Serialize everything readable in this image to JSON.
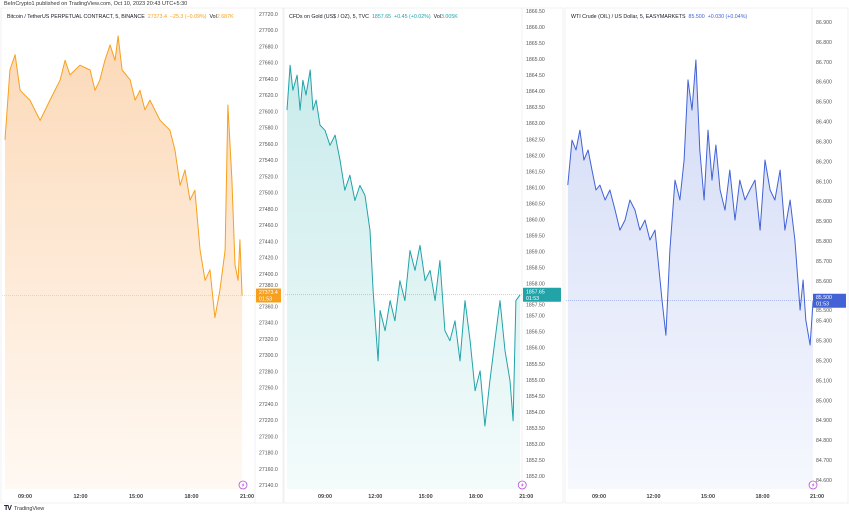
{
  "published": "BeInCrypto1 published on TradingView.com, Oct 10, 2023 20:43 UTC+5:30",
  "footer": {
    "logo": "TV",
    "brand": "TradingView"
  },
  "chart_data": [
    {
      "type": "area",
      "title": "Bitcoin / TetherUS PERPETUAL CONTRACT, 5, BINANCE",
      "last": "27373.4",
      "change": "−25.3 (−0.09%)",
      "vol_label": "Vol",
      "vol": "2.687K",
      "last_label_price": "27373.4",
      "last_label_time": "01:53",
      "color": "#f7a01d",
      "fill_top": "#fcd9b8",
      "fill_bottom": "#fff9f3",
      "ylim": [
        27140,
        27720
      ],
      "decimals": 1,
      "y_ticks": [
        27140,
        27160,
        27180,
        27200,
        27220,
        27240,
        27260,
        27280,
        27300,
        27320,
        27340,
        27360,
        27380,
        27400,
        27420,
        27440,
        27460,
        27480,
        27500,
        27520,
        27540,
        27560,
        27580,
        27600,
        27620,
        27640,
        27660,
        27680,
        27700,
        27720
      ],
      "x_ticks": [
        "09:00",
        "12:00",
        "15:00",
        "18:00",
        "21:00"
      ],
      "points": [
        [
          "07:55",
          27565
        ],
        [
          "08:11",
          27651
        ],
        [
          "08:28",
          27670
        ],
        [
          "08:44",
          27626
        ],
        [
          "09:16",
          27614
        ],
        [
          "09:49",
          27589
        ],
        [
          "10:21",
          27614
        ],
        [
          "10:54",
          27639
        ],
        [
          "11:10",
          27663
        ],
        [
          "11:26",
          27645
        ],
        [
          "11:58",
          27657
        ],
        [
          "12:31",
          27651
        ],
        [
          "12:47",
          27626
        ],
        [
          "13:03",
          27639
        ],
        [
          "13:19",
          27663
        ],
        [
          "13:36",
          27682
        ],
        [
          "13:52",
          27663
        ],
        [
          "14:02",
          27693
        ],
        [
          "14:15",
          27651
        ],
        [
          "14:41",
          27639
        ],
        [
          "14:57",
          27614
        ],
        [
          "15:13",
          27626
        ],
        [
          "15:29",
          27602
        ],
        [
          "15:45",
          27614
        ],
        [
          "16:18",
          27589
        ],
        [
          "16:50",
          27577
        ],
        [
          "17:06",
          27553
        ],
        [
          "17:23",
          27509
        ],
        [
          "17:39",
          27528
        ],
        [
          "17:55",
          27491
        ],
        [
          "18:11",
          27503
        ],
        [
          "18:28",
          27429
        ],
        [
          "18:44",
          27392
        ],
        [
          "19:00",
          27405
        ],
        [
          "19:16",
          27346
        ],
        [
          "19:32",
          27380
        ],
        [
          "19:49",
          27429
        ],
        [
          "19:58",
          27608
        ],
        [
          "20:11",
          27516
        ],
        [
          "20:21",
          27411
        ],
        [
          "20:31",
          27392
        ],
        [
          "20:37",
          27442
        ],
        [
          "20:44",
          27373.4
        ]
      ]
    },
    {
      "type": "area",
      "title": "CFDs on Gold (US$ / OZ), 5, TVC",
      "last": "1857.65",
      "change": "+0.45 (+0.02%)",
      "vol_label": "Vol",
      "vol": "3.005K",
      "last_label_price": "1857.65",
      "last_label_time": "01:53",
      "color": "#22a3a8",
      "fill_top": "#c9ebeb",
      "fill_bottom": "#f4fbfb",
      "ylim": [
        1852,
        1866.5
      ],
      "decimals": 2,
      "y_ticks": [
        1852,
        1852.5,
        1853,
        1853.5,
        1854,
        1854.5,
        1855,
        1855.5,
        1856,
        1856.5,
        1857,
        1857.5,
        1858,
        1858.5,
        1859,
        1859.5,
        1860,
        1860.5,
        1861,
        1861.5,
        1862,
        1862.5,
        1863,
        1863.5,
        1864,
        1864.5,
        1865,
        1865.5,
        1866,
        1866.5
      ],
      "x_ticks": [
        "09:00",
        "12:00",
        "15:00",
        "18:00",
        "21:00"
      ],
      "points": [
        [
          "06:44",
          1863.41
        ],
        [
          "06:55",
          1864.81
        ],
        [
          "07:05",
          1864.03
        ],
        [
          "07:20",
          1864.5
        ],
        [
          "07:31",
          1863.41
        ],
        [
          "07:41",
          1864.34
        ],
        [
          "07:52",
          1863.88
        ],
        [
          "08:07",
          1864.66
        ],
        [
          "08:17",
          1863.41
        ],
        [
          "08:28",
          1863.72
        ],
        [
          "08:42",
          1862.94
        ],
        [
          "09:00",
          1862.78
        ],
        [
          "09:18",
          1862.31
        ],
        [
          "09:36",
          1862.63
        ],
        [
          "09:54",
          1861.84
        ],
        [
          "10:11",
          1860.91
        ],
        [
          "10:29",
          1861.38
        ],
        [
          "10:47",
          1860.59
        ],
        [
          "11:05",
          1861.06
        ],
        [
          "11:23",
          1860.75
        ],
        [
          "11:41",
          1859.66
        ],
        [
          "11:52",
          1857.78
        ],
        [
          "12:02",
          1856.53
        ],
        [
          "12:10",
          1855.59
        ],
        [
          "12:17",
          1857.16
        ],
        [
          "12:35",
          1856.53
        ],
        [
          "12:53",
          1857.47
        ],
        [
          "13:10",
          1856.84
        ],
        [
          "13:28",
          1858.09
        ],
        [
          "13:46",
          1857.47
        ],
        [
          "14:04",
          1859.03
        ],
        [
          "14:22",
          1858.41
        ],
        [
          "14:40",
          1859.19
        ],
        [
          "14:58",
          1858.09
        ],
        [
          "15:16",
          1858.41
        ],
        [
          "15:34",
          1857.47
        ],
        [
          "15:51",
          1858.72
        ],
        [
          "16:09",
          1856.53
        ],
        [
          "16:27",
          1856.22
        ],
        [
          "16:45",
          1856.84
        ],
        [
          "17:03",
          1855.59
        ],
        [
          "17:21",
          1857.47
        ],
        [
          "17:39",
          1856.22
        ],
        [
          "17:57",
          1854.66
        ],
        [
          "18:15",
          1855.28
        ],
        [
          "18:32",
          1853.56
        ],
        [
          "18:50",
          1854.97
        ],
        [
          "19:08",
          1856.22
        ],
        [
          "19:26",
          1857.47
        ],
        [
          "19:44",
          1855.91
        ],
        [
          "20:02",
          1854.97
        ],
        [
          "20:13",
          1853.72
        ],
        [
          "20:23",
          1857.47
        ],
        [
          "20:38",
          1857.65
        ]
      ]
    },
    {
      "type": "area",
      "title": "WTI Crude (OIL) / US Dollar, 5, EASYMARKETS",
      "last": "85.500",
      "change": "+0.030 (+0.04%)",
      "vol_label": "",
      "vol": "",
      "last_label_price": "85.500",
      "last_label_time": "01:53",
      "color": "#4262d6",
      "fill_top": "#d3dbf6",
      "fill_bottom": "#f6f8fe",
      "ylim": [
        84.6,
        86.9
      ],
      "decimals": 3,
      "y_ticks": [
        84.6,
        84.7,
        84.8,
        84.9,
        85.0,
        85.1,
        85.2,
        85.3,
        85.4,
        85.5,
        85.6,
        85.7,
        85.8,
        85.9,
        86.0,
        86.1,
        86.2,
        86.3,
        86.4,
        86.5,
        86.6,
        86.7,
        86.8,
        86.9
      ],
      "x_ticks": [
        "09:00",
        "12:00",
        "15:00",
        "18:00",
        "21:00"
      ],
      "points": [
        [
          "07:17",
          86.081
        ],
        [
          "07:31",
          86.307
        ],
        [
          "07:44",
          86.257
        ],
        [
          "07:57",
          86.357
        ],
        [
          "08:10",
          86.207
        ],
        [
          "08:24",
          86.257
        ],
        [
          "08:37",
          86.156
        ],
        [
          "08:50",
          86.056
        ],
        [
          "09:03",
          86.081
        ],
        [
          "09:20",
          86.006
        ],
        [
          "09:36",
          86.056
        ],
        [
          "09:53",
          85.955
        ],
        [
          "10:09",
          85.855
        ],
        [
          "10:26",
          85.905
        ],
        [
          "10:42",
          86.006
        ],
        [
          "10:59",
          85.955
        ],
        [
          "11:15",
          85.855
        ],
        [
          "11:32",
          85.905
        ],
        [
          "11:48",
          85.805
        ],
        [
          "12:05",
          85.855
        ],
        [
          "12:15",
          85.704
        ],
        [
          "12:28",
          85.503
        ],
        [
          "12:41",
          85.327
        ],
        [
          "12:54",
          85.754
        ],
        [
          "13:11",
          86.106
        ],
        [
          "13:27",
          86.006
        ],
        [
          "13:41",
          86.207
        ],
        [
          "13:54",
          86.609
        ],
        [
          "14:07",
          86.458
        ],
        [
          "14:20",
          86.709
        ],
        [
          "14:33",
          86.257
        ],
        [
          "14:47",
          86.006
        ],
        [
          "15:00",
          86.357
        ],
        [
          "15:13",
          86.106
        ],
        [
          "15:26",
          86.282
        ],
        [
          "15:40",
          86.056
        ],
        [
          "15:56",
          85.955
        ],
        [
          "16:12",
          86.156
        ],
        [
          "16:29",
          85.905
        ],
        [
          "16:45",
          86.106
        ],
        [
          "17:02",
          86.006
        ],
        [
          "17:18",
          86.056
        ],
        [
          "17:35",
          86.106
        ],
        [
          "17:52",
          85.855
        ],
        [
          "18:08",
          86.207
        ],
        [
          "18:25",
          86.056
        ],
        [
          "18:41",
          86.006
        ],
        [
          "18:58",
          86.156
        ],
        [
          "19:14",
          85.855
        ],
        [
          "19:31",
          86.006
        ],
        [
          "19:47",
          85.805
        ],
        [
          "20:04",
          85.453
        ],
        [
          "20:14",
          85.604
        ],
        [
          "20:23",
          85.403
        ],
        [
          "20:37",
          85.277
        ],
        [
          "20:47",
          85.5
        ]
      ]
    }
  ]
}
